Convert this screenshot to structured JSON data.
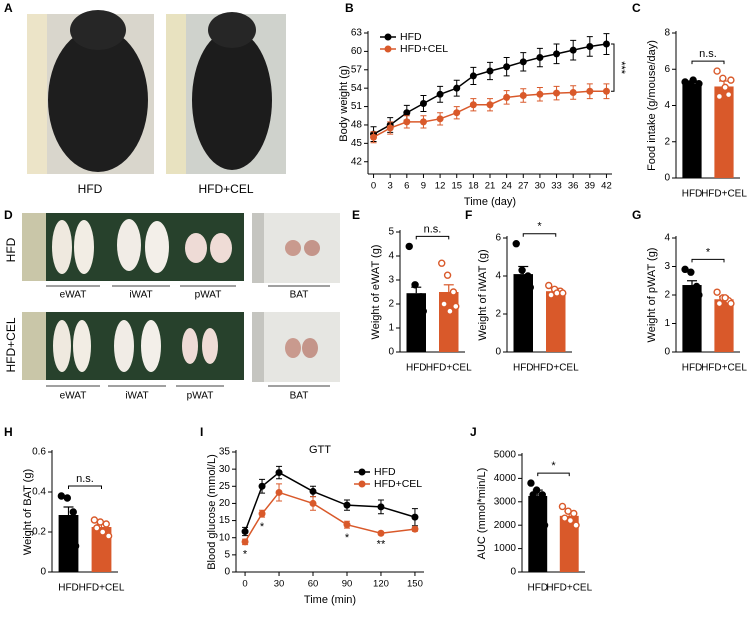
{
  "photo_panels": [
    {
      "panel": "A",
      "labels": [
        "HFD",
        "HFD+CEL"
      ]
    },
    {
      "panel": "D",
      "row_labels": [
        "HFD",
        "HFD+CEL"
      ],
      "tissue_labels": [
        "eWAT",
        "iWAT",
        "pWAT",
        "BAT"
      ]
    }
  ],
  "chart_data": [
    {
      "type": "line",
      "panel": "B",
      "x_label": "Time (day)",
      "y_label": "Body weight (g)",
      "x": [
        0,
        3,
        6,
        9,
        12,
        15,
        18,
        21,
        24,
        27,
        30,
        33,
        36,
        39,
        42
      ],
      "xlim": [
        -1,
        43
      ],
      "xticks": [
        0,
        3,
        6,
        9,
        12,
        15,
        18,
        21,
        24,
        27,
        30,
        33,
        36,
        39,
        42
      ],
      "ylim": [
        40,
        63
      ],
      "yticks": [
        42,
        45,
        48,
        51,
        54,
        57,
        60,
        63
      ],
      "series": [
        {
          "name": "HFD",
          "color": "#000000",
          "values": [
            46.5,
            48,
            50,
            51.5,
            53,
            54,
            56,
            56.8,
            57.5,
            58.3,
            59,
            59.6,
            60.2,
            60.8,
            61.2
          ],
          "errors": [
            1.2,
            1.2,
            1.2,
            1.3,
            1.3,
            1.3,
            1.4,
            1.4,
            1.5,
            1.5,
            1.5,
            1.6,
            1.6,
            1.6,
            1.7
          ]
        },
        {
          "name": "HFD+CEL",
          "color": "#d9592a",
          "values": [
            46,
            47.5,
            48.5,
            48.5,
            49,
            50,
            51.3,
            51.3,
            52.5,
            52.8,
            53,
            53.2,
            53.3,
            53.5,
            53.5
          ],
          "errors": [
            0.9,
            1,
            1,
            1,
            1,
            1,
            1,
            1,
            1.1,
            1.1,
            1.1,
            1.1,
            1.1,
            1.2,
            1.2
          ]
        }
      ],
      "annotation": "***",
      "legend": "top-left"
    },
    {
      "type": "bar",
      "panel": "C",
      "y_label": "Food intake (g/mouse/day)",
      "categories": [
        "HFD",
        "HFD+CEL"
      ],
      "values": [
        5.2,
        5.05
      ],
      "errors": [
        0.15,
        0.3
      ],
      "colors": [
        "#000000",
        "#d9592a"
      ],
      "points": [
        [
          5.3,
          5.2,
          5.0,
          5.1,
          5.4,
          5.2
        ],
        [
          5.9,
          5.5,
          4.6,
          4.5,
          5.0,
          5.4
        ]
      ],
      "ylim": [
        0,
        8
      ],
      "yticks": [
        0,
        2,
        4,
        6,
        8
      ],
      "annotation": "n.s."
    },
    {
      "type": "bar",
      "panel": "E",
      "y_label": "Weight of eWAT (g)",
      "categories": [
        "HFD",
        "HFD+CEL"
      ],
      "values": [
        2.45,
        2.5
      ],
      "errors": [
        0.25,
        0.3
      ],
      "colors": [
        "#000000",
        "#d9592a"
      ],
      "points": [
        [
          4.4,
          2.8,
          2.3,
          2.0,
          1.5,
          1.7
        ],
        [
          3.7,
          3.2,
          2.5,
          2.0,
          1.7,
          1.9
        ]
      ],
      "ylim": [
        0,
        5
      ],
      "yticks": [
        0,
        1,
        2,
        3,
        4,
        5
      ],
      "annotation": "n.s."
    },
    {
      "type": "bar",
      "panel": "F",
      "y_label": "Weight of iWAT (g)",
      "categories": [
        "HFD",
        "HFD+CEL"
      ],
      "values": [
        4.1,
        3.2
      ],
      "errors": [
        0.4,
        0.15
      ],
      "colors": [
        "#000000",
        "#d9592a"
      ],
      "points": [
        [
          5.7,
          4.3,
          4.0,
          3.7,
          3.5,
          3.4
        ],
        [
          3.5,
          3.3,
          3.2,
          3.0,
          3.1,
          3.1
        ]
      ],
      "ylim": [
        0,
        6
      ],
      "yticks": [
        0,
        2,
        4,
        6
      ],
      "annotation": "*"
    },
    {
      "type": "bar",
      "panel": "G",
      "y_label": "Weight of pWAT (g)",
      "categories": [
        "HFD",
        "HFD+CEL"
      ],
      "values": [
        2.35,
        1.85
      ],
      "errors": [
        0.15,
        0.1
      ],
      "colors": [
        "#000000",
        "#d9592a"
      ],
      "points": [
        [
          2.9,
          2.8,
          2.3,
          2.1,
          2.0,
          2.0
        ],
        [
          2.1,
          1.9,
          1.8,
          1.7,
          1.9,
          1.7
        ]
      ],
      "ylim": [
        0,
        4
      ],
      "yticks": [
        0,
        1,
        2,
        3,
        4
      ],
      "annotation": "*"
    },
    {
      "type": "bar",
      "panel": "H",
      "y_label": "Weight of BAT (g)",
      "categories": [
        "HFD",
        "HFD+CEL"
      ],
      "values": [
        0.285,
        0.225
      ],
      "errors": [
        0.04,
        0.015
      ],
      "colors": [
        "#000000",
        "#d9592a"
      ],
      "points": [
        [
          0.38,
          0.37,
          0.3,
          0.25,
          0.18,
          0.13
        ],
        [
          0.26,
          0.25,
          0.24,
          0.22,
          0.2,
          0.18
        ]
      ],
      "ylim": [
        0,
        0.6
      ],
      "yticks": [
        0,
        0.2,
        0.4,
        0.6
      ],
      "annotation": "n.s."
    },
    {
      "type": "line",
      "panel": "I",
      "title": "GTT",
      "x_label": "Time (min)",
      "y_label": "Blood glucose (mmol/L)",
      "x": [
        0,
        15,
        30,
        60,
        90,
        120,
        150
      ],
      "xlim": [
        -8,
        158
      ],
      "xticks": [
        0,
        30,
        60,
        90,
        120,
        150
      ],
      "ylim": [
        0,
        35
      ],
      "yticks": [
        0,
        5,
        10,
        15,
        20,
        25,
        30,
        35
      ],
      "series": [
        {
          "name": "HFD",
          "color": "#000000",
          "values": [
            11.8,
            25,
            29,
            23.5,
            19.5,
            19,
            16
          ],
          "errors": [
            1.2,
            2,
            1.8,
            1.5,
            1.5,
            2,
            2.5
          ]
        },
        {
          "name": "HFD+CEL",
          "color": "#d9592a",
          "values": [
            8.8,
            17,
            23.2,
            20,
            13.8,
            11.3,
            12.5
          ],
          "errors": [
            0.8,
            1,
            2.5,
            2,
            1,
            0.4,
            0.6
          ]
        }
      ],
      "point_labels": [
        "*",
        "*",
        null,
        null,
        "*",
        "**",
        null
      ],
      "legend": "top-right"
    },
    {
      "type": "bar",
      "panel": "J",
      "y_label": "AUC (mmol*min/L)",
      "categories": [
        "HFD",
        "HFD+CEL"
      ],
      "values": [
        3250,
        2400
      ],
      "errors": [
        250,
        200
      ],
      "colors": [
        "#000000",
        "#d9592a"
      ],
      "points": [
        [
          3800,
          3500,
          3300,
          3300,
          2800,
          2000
        ],
        [
          2800,
          2600,
          2500,
          2300,
          2200,
          2000
        ]
      ],
      "ylim": [
        0,
        5000
      ],
      "yticks": [
        0,
        1000,
        2000,
        3000,
        4000,
        5000
      ],
      "annotation": "*"
    }
  ]
}
